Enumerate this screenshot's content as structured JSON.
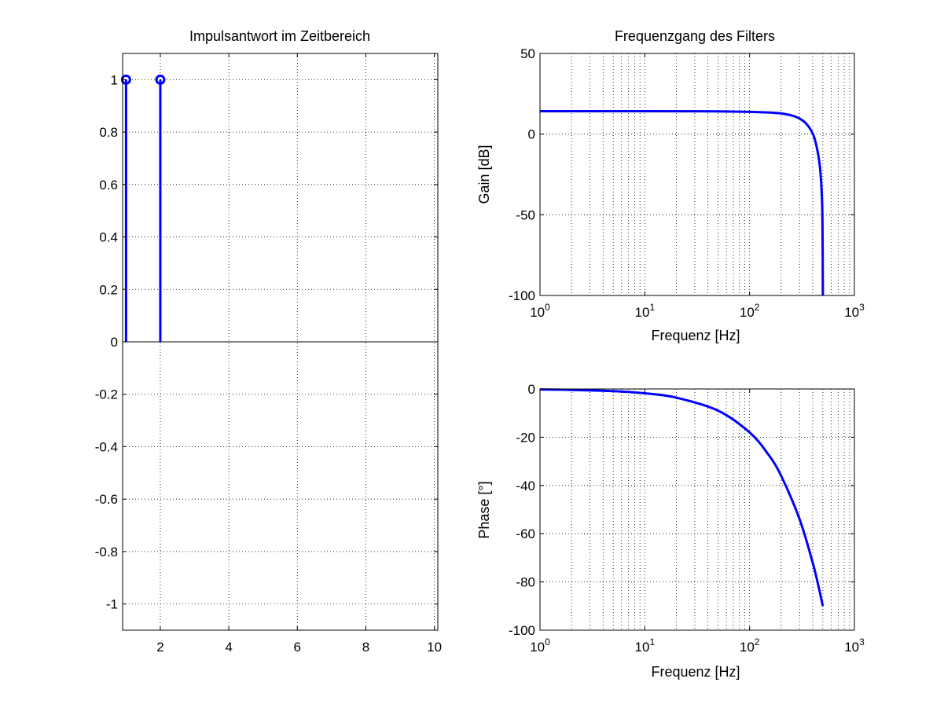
{
  "chart_data": [
    {
      "type": "stem",
      "title": "Impulsantwort im Zeitbereich",
      "xlabel": "",
      "ylabel": "",
      "xlim": [
        0.9,
        10.1
      ],
      "ylim": [
        -1.1,
        1.1
      ],
      "grid": true,
      "x": [
        1,
        2
      ],
      "y": [
        1,
        1
      ],
      "color": "#0000ff",
      "xticks": [
        2,
        4,
        6,
        8,
        10
      ],
      "yticks": [
        1,
        0.8,
        0.6,
        0.4,
        0.2,
        0,
        -0.2,
        -0.4,
        -0.6,
        -0.8,
        -1
      ],
      "xtick_labels": [
        "2",
        "4",
        "6",
        "8",
        "10"
      ],
      "ytick_labels": [
        "1",
        "0.8",
        "0.6",
        "0.4",
        "0.2",
        "0",
        "-0.2",
        "-0.4",
        "-0.6",
        "-0.8",
        "-1"
      ]
    },
    {
      "type": "line",
      "title": "Frequenzgang des Filters",
      "xlabel": "Frequenz [Hz]",
      "ylabel": "Gain [dB]",
      "xscale": "log",
      "xlim": [
        1,
        1000
      ],
      "ylim": [
        -100,
        50
      ],
      "grid": true,
      "color": "#0000ff",
      "x": [
        1,
        10,
        50,
        100,
        150,
        200,
        250,
        300,
        350,
        400,
        430,
        460,
        480,
        495,
        500
      ],
      "y": [
        14.2,
        14.2,
        14.1,
        13.8,
        13.4,
        12.8,
        11.6,
        9.6,
        6.2,
        0.4,
        -6.0,
        -16.0,
        -28.0,
        -50.0,
        -100
      ],
      "xticks": [
        1,
        10,
        100,
        1000
      ],
      "xtick_labels": [
        {
          "base": "10",
          "exp": "0"
        },
        {
          "base": "10",
          "exp": "1"
        },
        {
          "base": "10",
          "exp": "2"
        },
        {
          "base": "10",
          "exp": "3"
        }
      ],
      "yticks": [
        50,
        0,
        -50,
        -100
      ],
      "ytick_labels": [
        "50",
        "0",
        "-50",
        "-100"
      ]
    },
    {
      "type": "line",
      "title": "",
      "xlabel": "Frequenz [Hz]",
      "ylabel": "Phase [°]",
      "xscale": "log",
      "xlim": [
        1,
        1000
      ],
      "ylim": [
        -100,
        0
      ],
      "grid": true,
      "color": "#0000ff",
      "x": [
        1,
        2,
        5,
        10,
        20,
        50,
        100,
        150,
        200,
        300,
        400,
        450,
        500
      ],
      "y": [
        -0.2,
        -0.4,
        -0.9,
        -1.8,
        -3.6,
        -9.0,
        -18.0,
        -27.0,
        -36.0,
        -54.0,
        -72.0,
        -81.0,
        -90.0
      ],
      "xticks": [
        1,
        10,
        100,
        1000
      ],
      "xtick_labels": [
        {
          "base": "10",
          "exp": "0"
        },
        {
          "base": "10",
          "exp": "1"
        },
        {
          "base": "10",
          "exp": "2"
        },
        {
          "base": "10",
          "exp": "3"
        }
      ],
      "yticks": [
        0,
        -20,
        -40,
        -60,
        -80,
        -100
      ],
      "ytick_labels": [
        "0",
        "-20",
        "-40",
        "-60",
        "-80",
        "-100"
      ]
    }
  ]
}
